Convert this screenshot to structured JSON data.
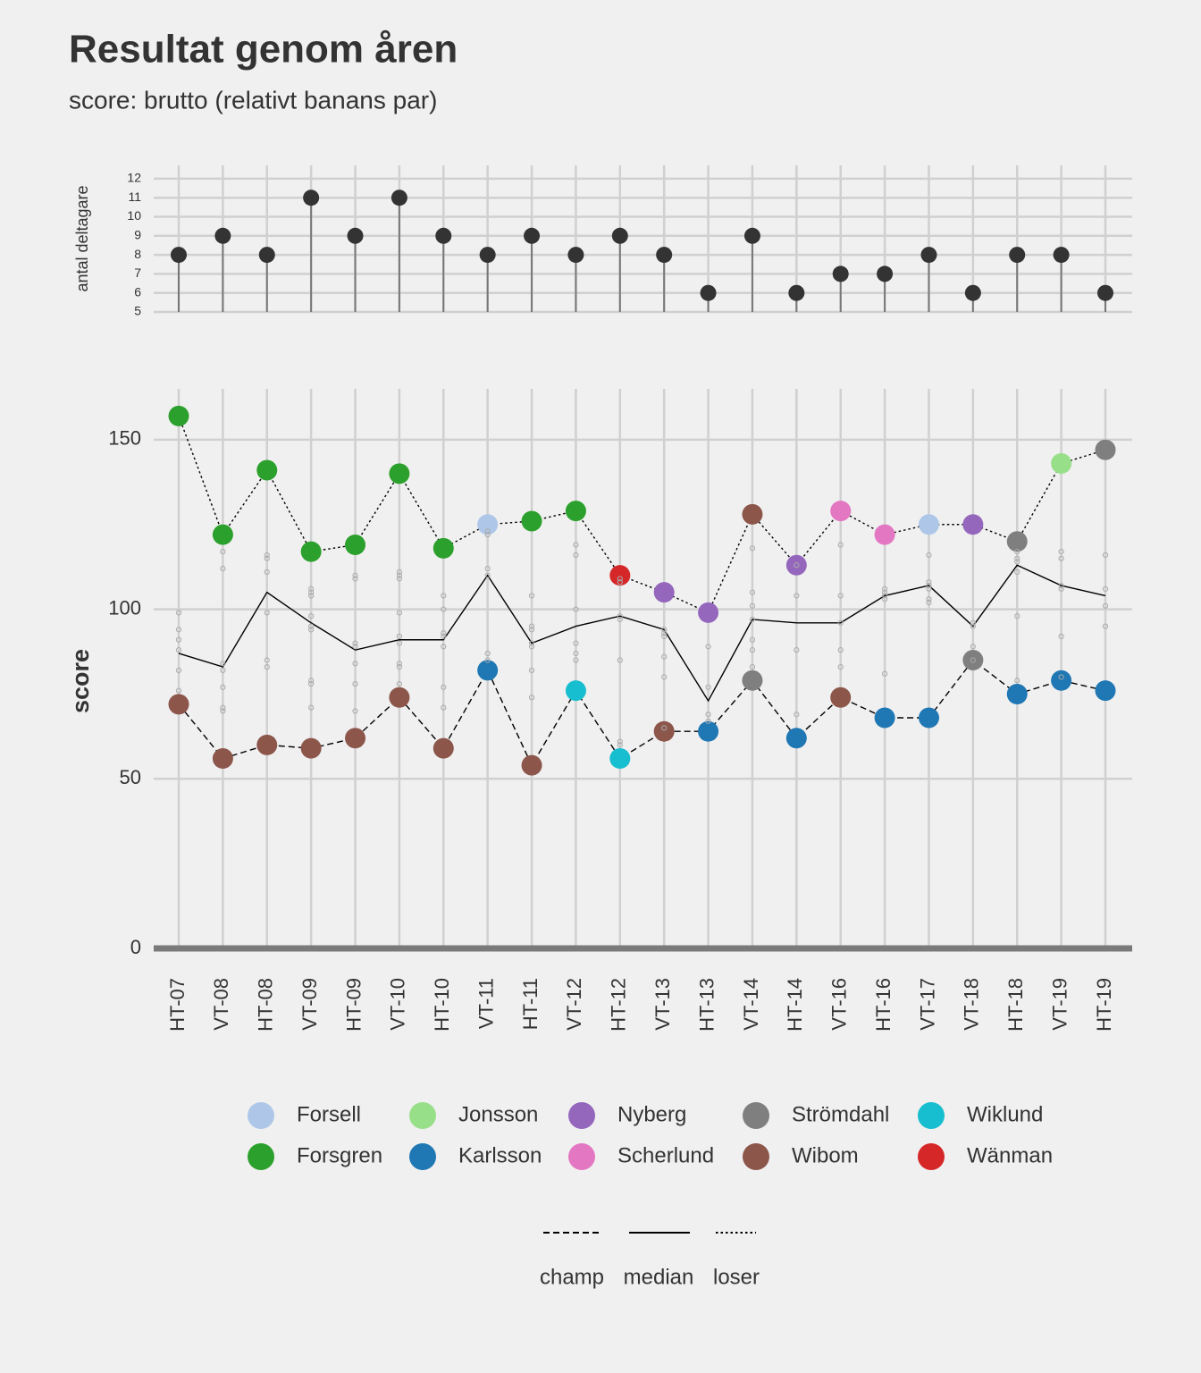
{
  "chart_data": [
    {
      "type": "lollipop",
      "title": "Resultat genom åren",
      "subtitle": "score: brutto (relativt banans par)",
      "ylabel": "antal deltagare",
      "color": "#333333",
      "values": [
        8,
        9,
        8,
        11,
        9,
        11,
        9,
        8,
        9,
        8,
        9,
        8,
        6,
        9,
        6,
        7,
        7,
        8,
        6,
        8,
        8,
        6
      ],
      "ylim": [
        5,
        12.7
      ],
      "yticks": [
        5,
        6,
        7,
        8,
        9,
        10,
        11,
        12
      ],
      "grid": true
    },
    {
      "type": "line",
      "ylabel": "score",
      "categories": [
        "HT-07",
        "VT-08",
        "HT-08",
        "VT-09",
        "HT-09",
        "VT-10",
        "HT-10",
        "VT-11",
        "HT-11",
        "VT-12",
        "HT-12",
        "VT-13",
        "HT-13",
        "VT-14",
        "HT-14",
        "VT-16",
        "HT-16",
        "VT-17",
        "VT-18",
        "HT-18",
        "VT-19",
        "HT-19"
      ],
      "ylim": [
        0,
        165
      ],
      "yticks": [
        0,
        50,
        100,
        150
      ],
      "grid": true,
      "players": [
        {
          "name": "Forsell",
          "color": "#aec7e8"
        },
        {
          "name": "Forsgren",
          "color": "#2ca02c"
        },
        {
          "name": "Jonsson",
          "color": "#98df8a"
        },
        {
          "name": "Karlsson",
          "color": "#1f77b4"
        },
        {
          "name": "Nyberg",
          "color": "#9467bd"
        },
        {
          "name": "Scherlund",
          "color": "#e377c2"
        },
        {
          "name": "Strömdahl",
          "color": "#7f7f7f"
        },
        {
          "name": "Wibom",
          "color": "#8c564b"
        },
        {
          "name": "Wiklund",
          "color": "#17becf"
        },
        {
          "name": "Wänman",
          "color": "#d62728"
        }
      ],
      "series": [
        {
          "name": "champ",
          "linetype": "dashed",
          "values": [
            72,
            56,
            60,
            59,
            62,
            74,
            59,
            82,
            54,
            76,
            56,
            64,
            64,
            79,
            62,
            74,
            68,
            68,
            85,
            75,
            79,
            76
          ],
          "players": [
            "Wibom",
            "Wibom",
            "Wibom",
            "Wibom",
            "Wibom",
            "Wibom",
            "Wibom",
            "Karlsson",
            "Wibom",
            "Wiklund",
            "Wiklund",
            "Wibom",
            "Karlsson",
            "Strömdahl",
            "Karlsson",
            "Wibom",
            "Karlsson",
            "Karlsson",
            "Strömdahl",
            "Karlsson",
            "Karlsson",
            "Karlsson"
          ]
        },
        {
          "name": "median",
          "linetype": "solid",
          "values": [
            87,
            83,
            105,
            96,
            88,
            91,
            91,
            110,
            90,
            95,
            98,
            94,
            73,
            97,
            96,
            96,
            104,
            107,
            95,
            113,
            107,
            104
          ]
        },
        {
          "name": "loser",
          "linetype": "dotted",
          "values": [
            157,
            122,
            141,
            117,
            119,
            140,
            118,
            125,
            126,
            129,
            110,
            105,
            99,
            128,
            113,
            129,
            122,
            125,
            125,
            120,
            143,
            147
          ],
          "players": [
            "Forsgren",
            "Forsgren",
            "Forsgren",
            "Forsgren",
            "Forsgren",
            "Forsgren",
            "Forsgren",
            "Forsell",
            "Forsgren",
            "Forsgren",
            "Wänman",
            "Nyberg",
            "Nyberg",
            "Wibom",
            "Nyberg",
            "Scherlund",
            "Scherlund",
            "Forsell",
            "Nyberg",
            "Strömdahl",
            "Jonsson",
            "Strömdahl"
          ]
        }
      ],
      "participants": [
        [
          99,
          94,
          91,
          88,
          82,
          76
        ],
        [
          117,
          112,
          84,
          82,
          77,
          71,
          70
        ],
        [
          116,
          115,
          111,
          99,
          85,
          83
        ],
        [
          106,
          105,
          104,
          98,
          95,
          94,
          79,
          78,
          71
        ],
        [
          110,
          109,
          90,
          89,
          84,
          78,
          70
        ],
        [
          111,
          110,
          109,
          99,
          92,
          90,
          84,
          83,
          78
        ],
        [
          104,
          100,
          93,
          92,
          89,
          77,
          71
        ],
        [
          123,
          122,
          112,
          110,
          87,
          85
        ],
        [
          104,
          95,
          94,
          90,
          89,
          82,
          74
        ],
        [
          119,
          116,
          100,
          90,
          87,
          85
        ],
        [
          109,
          108,
          98,
          97,
          85,
          61,
          60
        ],
        [
          94,
          93,
          92,
          86,
          80,
          65
        ],
        [
          89,
          77,
          69,
          67
        ],
        [
          118,
          105,
          101,
          97,
          91,
          88,
          83
        ],
        [
          113,
          104,
          88,
          69
        ],
        [
          119,
          104,
          96,
          88,
          83
        ],
        [
          106,
          105,
          104,
          103,
          81
        ],
        [
          116,
          108,
          107,
          106,
          103,
          102
        ],
        [
          96,
          95,
          89,
          85
        ],
        [
          117,
          115,
          114,
          111,
          98,
          79
        ],
        [
          117,
          115,
          107,
          106,
          92,
          80
        ],
        [
          116,
          106,
          101,
          95
        ]
      ]
    }
  ]
}
